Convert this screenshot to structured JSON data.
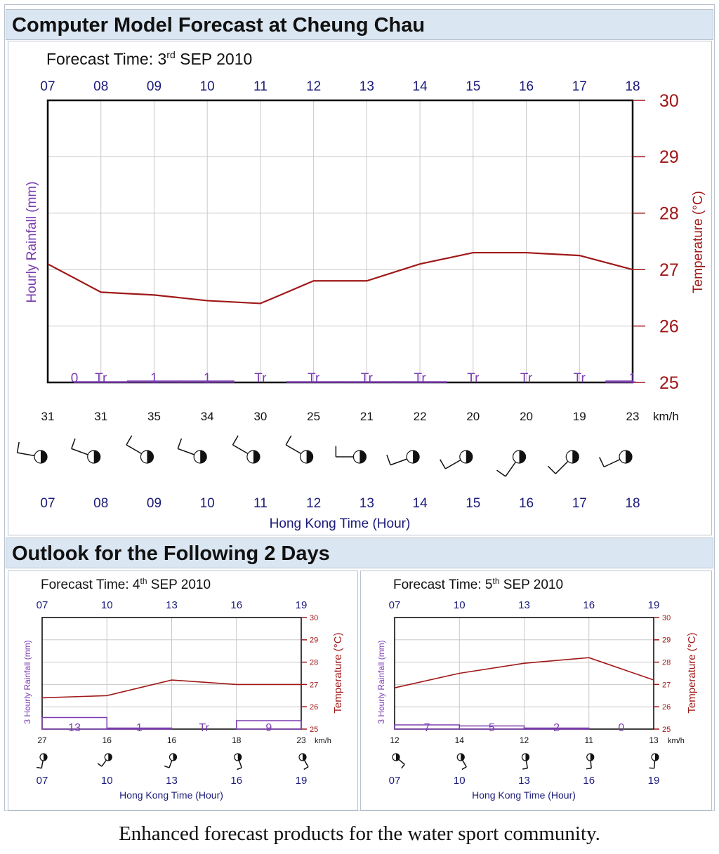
{
  "main": {
    "title": "Computer Model Forecast at Cheung Chau",
    "forecast_time": {
      "prefix": "Forecast Time: 3",
      "sup": "rd",
      "suffix": " SEP 2010"
    },
    "y_left_label": "Hourly Rainfall (mm)",
    "y_right_label": "Temperature (°C)",
    "x_label": "Hong Kong Time (Hour)",
    "wind_unit": "km/h"
  },
  "outlook": {
    "title": "Outlook for the Following 2 Days",
    "panels": [
      {
        "forecast_time": {
          "prefix": "Forecast Time: 4",
          "sup": "th",
          "suffix": " SEP 2010"
        },
        "y_left_label": "3 Hourly Rainfall (mm)",
        "y_right_label": "Temperature (°C)",
        "x_label": "Hong Kong Time (Hour)",
        "wind_unit": "km/h"
      },
      {
        "forecast_time": {
          "prefix": "Forecast Time: 5",
          "sup": "th",
          "suffix": " SEP 2010"
        },
        "y_left_label": "3 Hourly Rainfall (mm)",
        "y_right_label": "Temperature (°C)",
        "x_label": "Hong Kong Time (Hour)",
        "wind_unit": "km/h"
      }
    ]
  },
  "caption": "Enhanced forecast products for the water sport community.",
  "colors": {
    "temperature": "#a01818",
    "rainfall": "#7a3cb0",
    "hours": "#1a1a7a",
    "header_bg": "#dae6f1"
  },
  "chart_data": [
    {
      "type": "line",
      "hours": [
        "07",
        "08",
        "09",
        "10",
        "11",
        "12",
        "13",
        "14",
        "15",
        "16",
        "17",
        "18"
      ],
      "temperature": [
        27.1,
        26.6,
        26.55,
        26.45,
        26.4,
        26.8,
        26.8,
        27.1,
        27.3,
        27.3,
        27.25,
        27.0
      ],
      "ylim_right": [
        25,
        30
      ],
      "temp_ticks": [
        "25",
        "26",
        "27",
        "28",
        "29",
        "30"
      ],
      "rain_labels": [
        "0",
        "Tr",
        "1",
        "1",
        "Tr",
        "Tr",
        "Tr",
        "Tr",
        "Tr",
        "Tr",
        "Tr",
        "1"
      ],
      "rain_bars": [
        0,
        0.05,
        0.1,
        0.1,
        0,
        0.05,
        0.05,
        0.05,
        0,
        0,
        0,
        0.1
      ],
      "wind_speed": [
        "31",
        "31",
        "35",
        "34",
        "30",
        "25",
        "21",
        "22",
        "20",
        "20",
        "19",
        "23"
      ],
      "wind_dir_deg": [
        280,
        290,
        300,
        290,
        300,
        300,
        270,
        250,
        240,
        215,
        225,
        245
      ],
      "grid": true
    },
    {
      "type": "line",
      "hours": [
        "07",
        "10",
        "13",
        "16",
        "19"
      ],
      "temperature": [
        26.4,
        26.5,
        27.2,
        27.0,
        27.0
      ],
      "ylim_right": [
        25,
        30
      ],
      "temp_ticks": [
        "25",
        "26",
        "27",
        "28",
        "29",
        "30"
      ],
      "rain_labels": [
        "13",
        "1",
        "Tr",
        "9"
      ],
      "rain_bars": [
        0.55,
        0.05,
        0,
        0.4
      ],
      "wind_speed": [
        "27",
        "16",
        "16",
        "18",
        "23"
      ],
      "wind_dir_deg": [
        190,
        215,
        200,
        160,
        150
      ],
      "grid": true
    },
    {
      "type": "line",
      "hours": [
        "07",
        "10",
        "13",
        "16",
        "19"
      ],
      "temperature": [
        26.85,
        27.5,
        27.95,
        28.2,
        27.2
      ],
      "ylim_right": [
        25,
        30
      ],
      "temp_ticks": [
        "25",
        "26",
        "27",
        "28",
        "29",
        "30"
      ],
      "rain_labels": [
        "7",
        "5",
        "2",
        "0"
      ],
      "rain_bars": [
        0.2,
        0.15,
        0.05,
        0
      ],
      "wind_speed": [
        "12",
        "14",
        "12",
        "11",
        "13"
      ],
      "wind_dir_deg": [
        130,
        150,
        170,
        175,
        185
      ],
      "grid": true
    }
  ]
}
